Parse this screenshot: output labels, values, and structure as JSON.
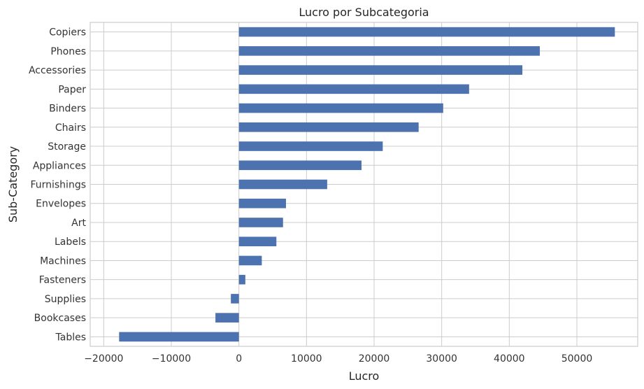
{
  "chart_data": {
    "type": "bar",
    "orientation": "horizontal",
    "title": "Lucro por Subcategoria",
    "xlabel": "Lucro",
    "ylabel": "Sub-Category",
    "xlim": [
      -22000,
      59000
    ],
    "xticks": [
      -20000,
      -10000,
      0,
      10000,
      20000,
      30000,
      40000,
      50000
    ],
    "xtick_labels": [
      "−20000",
      "−10000",
      "0",
      "10000",
      "20000",
      "30000",
      "40000",
      "50000"
    ],
    "grid": true,
    "bar_color": "#4c72b0",
    "categories": [
      "Copiers",
      "Phones",
      "Accessories",
      "Paper",
      "Binders",
      "Chairs",
      "Storage",
      "Appliances",
      "Furnishings",
      "Envelopes",
      "Art",
      "Labels",
      "Machines",
      "Fasteners",
      "Supplies",
      "Bookcases",
      "Tables"
    ],
    "values": [
      55618,
      44516,
      41937,
      34054,
      30222,
      26590,
      21279,
      18138,
      13059,
      6964,
      6528,
      5546,
      3385,
      950,
      -1189,
      -3473,
      -17725
    ]
  }
}
